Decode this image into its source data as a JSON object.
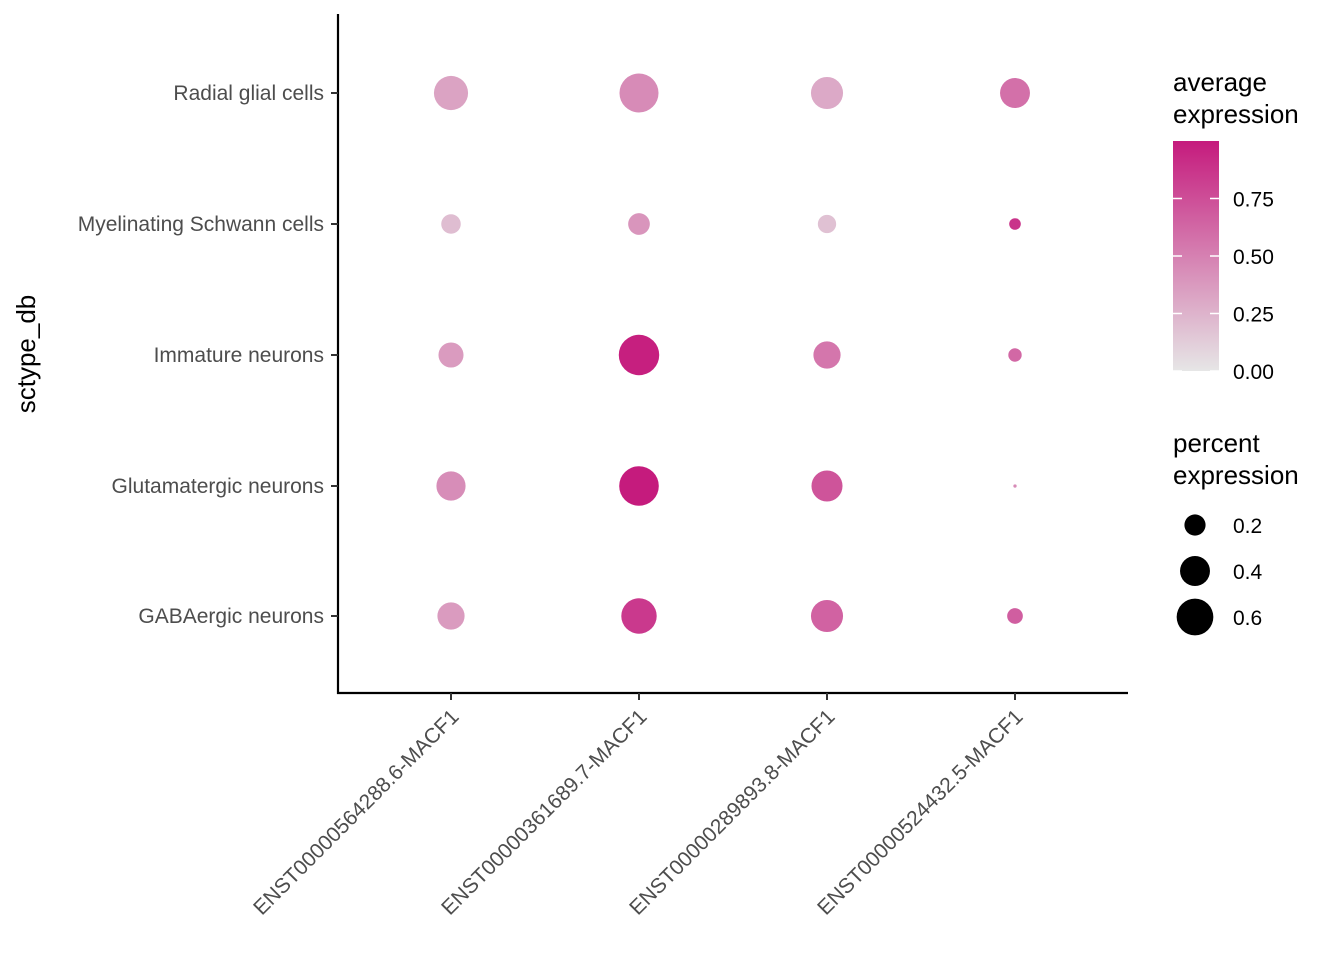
{
  "chart_data": {
    "type": "dot-plot",
    "x_categories": [
      "ENST00000564288.6-MACF1",
      "ENST00000361689.7-MACF1",
      "ENST00000289893.8-MACF1",
      "ENST00000524432.5-MACF1"
    ],
    "y_categories": [
      "Radial glial cells",
      "Myelinating Schwann cells",
      "Immature neurons",
      "Glutamatergic neurons",
      "GABAergic neurons"
    ],
    "ylabel": "sctype_db",
    "xlabel": "",
    "points": [
      {
        "x": "ENST00000564288.6-MACF1",
        "y": "Radial glial cells",
        "avg_expression": 0.33,
        "pct_expression": 0.52
      },
      {
        "x": "ENST00000361689.7-MACF1",
        "y": "Radial glial cells",
        "avg_expression": 0.45,
        "pct_expression": 0.68
      },
      {
        "x": "ENST00000289893.8-MACF1",
        "y": "Radial glial cells",
        "avg_expression": 0.3,
        "pct_expression": 0.46
      },
      {
        "x": "ENST00000524432.5-MACF1",
        "y": "Radial glial cells",
        "avg_expression": 0.58,
        "pct_expression": 0.4
      },
      {
        "x": "ENST00000564288.6-MACF1",
        "y": "Myelinating Schwann cells",
        "avg_expression": 0.2,
        "pct_expression": 0.17
      },
      {
        "x": "ENST00000361689.7-MACF1",
        "y": "Myelinating Schwann cells",
        "avg_expression": 0.4,
        "pct_expression": 0.21
      },
      {
        "x": "ENST00000289893.8-MACF1",
        "y": "Myelinating Schwann cells",
        "avg_expression": 0.18,
        "pct_expression": 0.15
      },
      {
        "x": "ENST00000524432.5-MACF1",
        "y": "Myelinating Schwann cells",
        "avg_expression": 0.88,
        "pct_expression": 0.06
      },
      {
        "x": "ENST00000564288.6-MACF1",
        "y": "Immature neurons",
        "avg_expression": 0.37,
        "pct_expression": 0.28
      },
      {
        "x": "ENST00000361689.7-MACF1",
        "y": "Immature neurons",
        "avg_expression": 0.98,
        "pct_expression": 0.73
      },
      {
        "x": "ENST00000289893.8-MACF1",
        "y": "Immature neurons",
        "avg_expression": 0.55,
        "pct_expression": 0.33
      },
      {
        "x": "ENST00000524432.5-MACF1",
        "y": "Immature neurons",
        "avg_expression": 0.62,
        "pct_expression": 0.08
      },
      {
        "x": "ENST00000564288.6-MACF1",
        "y": "Glutamatergic neurons",
        "avg_expression": 0.44,
        "pct_expression": 0.38
      },
      {
        "x": "ENST00000361689.7-MACF1",
        "y": "Glutamatergic neurons",
        "avg_expression": 1.0,
        "pct_expression": 0.7
      },
      {
        "x": "ENST00000289893.8-MACF1",
        "y": "Glutamatergic neurons",
        "avg_expression": 0.72,
        "pct_expression": 0.43
      },
      {
        "x": "ENST00000524432.5-MACF1",
        "y": "Glutamatergic neurons",
        "avg_expression": 0.45,
        "pct_expression": 0.005
      },
      {
        "x": "ENST00000564288.6-MACF1",
        "y": "GABAergic neurons",
        "avg_expression": 0.37,
        "pct_expression": 0.33
      },
      {
        "x": "ENST00000361689.7-MACF1",
        "y": "GABAergic neurons",
        "avg_expression": 0.85,
        "pct_expression": 0.56
      },
      {
        "x": "ENST00000289893.8-MACF1",
        "y": "GABAergic neurons",
        "avg_expression": 0.65,
        "pct_expression": 0.46
      },
      {
        "x": "ENST00000524432.5-MACF1",
        "y": "GABAergic neurons",
        "avg_expression": 0.67,
        "pct_expression": 0.11
      }
    ],
    "color_scale": {
      "title_lines": [
        "average",
        "expression"
      ],
      "low_color": "#e6e6e6",
      "high_color": "#c51b7d",
      "range": [
        0,
        1
      ],
      "ticks": [
        0.0,
        0.25,
        0.5,
        0.75
      ],
      "tick_labels": [
        "0.00",
        "0.25",
        "0.50",
        "0.75"
      ]
    },
    "size_scale": {
      "title_lines": [
        "percent",
        "expression"
      ],
      "values": [
        0.2,
        0.4,
        0.6
      ],
      "labels": [
        "0.2",
        "0.4",
        "0.6"
      ],
      "legend_color": "#000000"
    },
    "grid": false,
    "legend_position": "right"
  }
}
